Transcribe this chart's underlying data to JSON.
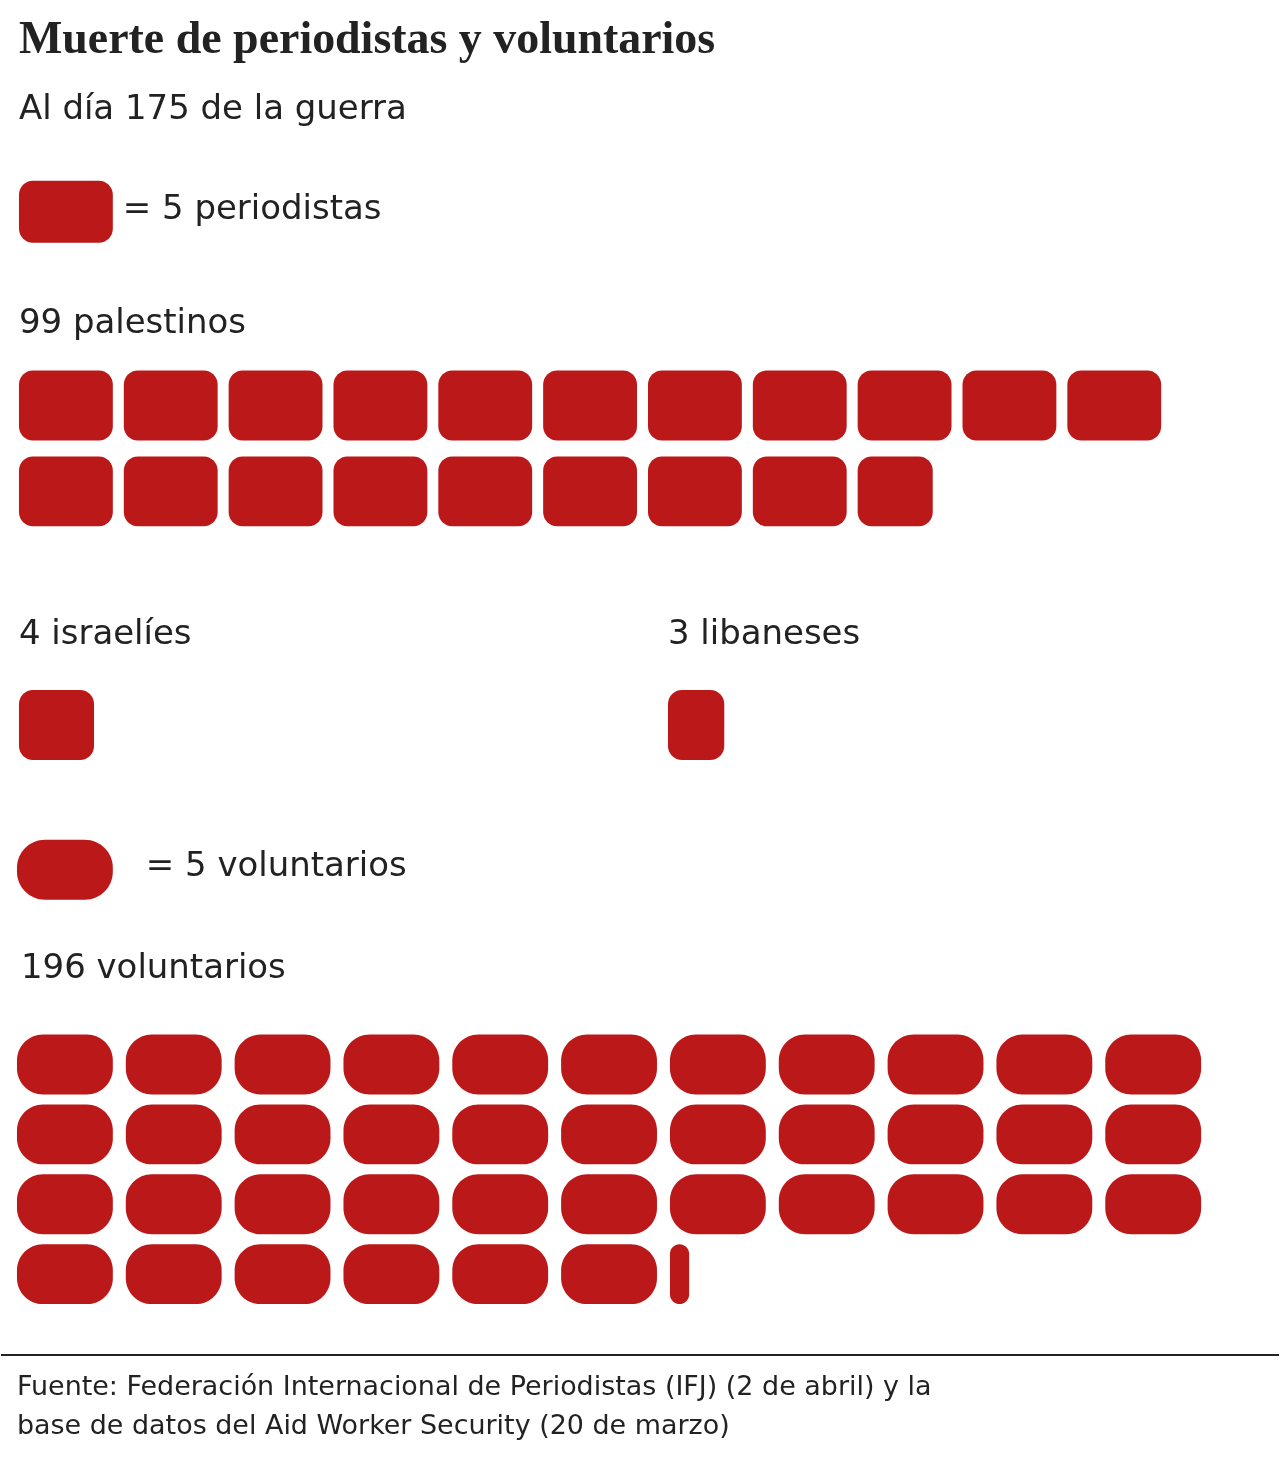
{
  "chart_data": [
    {
      "type": "other",
      "title": "Muerte de periodistas y voluntarios",
      "subtitle": "Al día 175 de la guerra",
      "annotations": [
        "= 5 periodistas"
      ],
      "categories": [
        "palestinos",
        "israelíes",
        "libaneses"
      ],
      "values": [
        99,
        4,
        3
      ],
      "data_labels": true,
      "colors": [
        "#bb1919",
        "#bb1919",
        "#bb1919"
      ]
    },
    {
      "type": "other",
      "annotations": [
        "= 5 voluntarios",
        "Fuente: Federación Internacional de Periodistas (IFJ) (2 de abril) y la base de datos del Aid Worker Security (20 de marzo)"
      ],
      "categories": [
        "voluntarios"
      ],
      "values": [
        196
      ],
      "data_labels": true,
      "colors": [
        "#bb1919"
      ]
    }
  ]
}
